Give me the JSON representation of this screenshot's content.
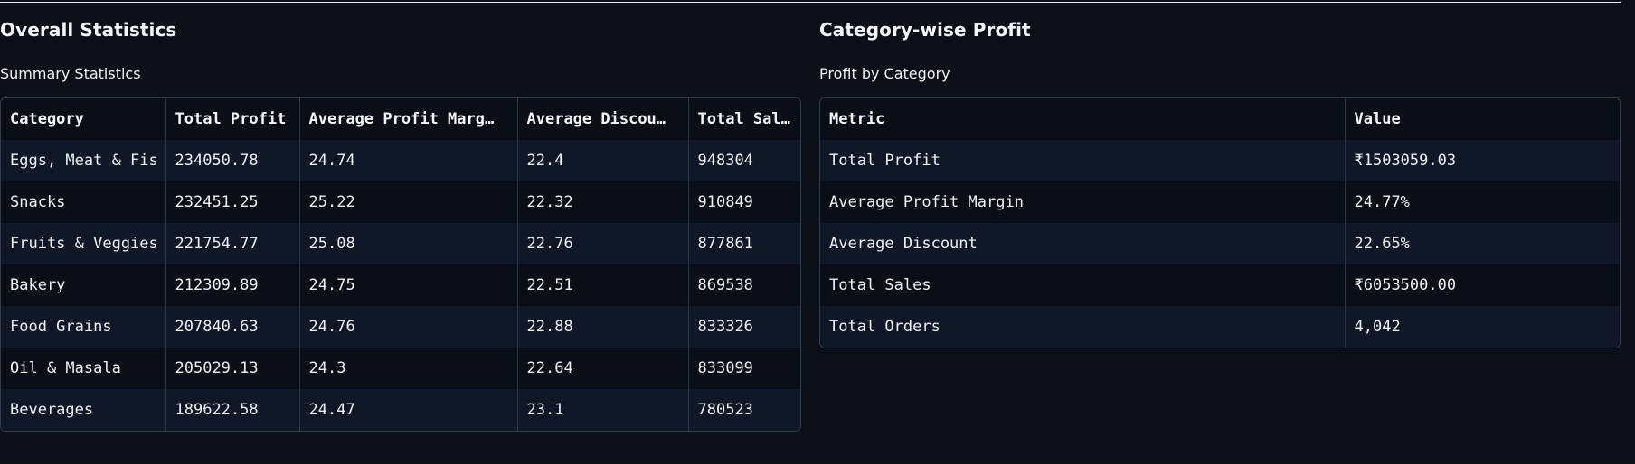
{
  "overall": {
    "title": "Overall Statistics",
    "subtitle": "Summary Statistics",
    "headers": [
      "Category",
      "Total Profit",
      "Average Profit Marg…",
      "Average Discou…",
      "Total Sal…"
    ],
    "rows": [
      [
        "Eggs, Meat & Fis",
        "234050.78",
        "24.74",
        "22.4",
        "948304"
      ],
      [
        "Snacks",
        "232451.25",
        "25.22",
        "22.32",
        "910849"
      ],
      [
        "Fruits & Veggies",
        "221754.77",
        "25.08",
        "22.76",
        "877861"
      ],
      [
        "Bakery",
        "212309.89",
        "24.75",
        "22.51",
        "869538"
      ],
      [
        "Food Grains",
        "207840.63",
        "24.76",
        "22.88",
        "833326"
      ],
      [
        "Oil & Masala",
        "205029.13",
        "24.3",
        "22.64",
        "833099"
      ],
      [
        "Beverages",
        "189622.58",
        "24.47",
        "23.1",
        "780523"
      ]
    ]
  },
  "category_profit": {
    "title": "Category-wise Profit",
    "subtitle": "Profit by Category",
    "headers": [
      "Metric",
      "Value"
    ],
    "rows": [
      [
        "Total Profit",
        "₹1503059.03"
      ],
      [
        "Average Profit Margin",
        "24.77%"
      ],
      [
        "Average Discount",
        "22.65%"
      ],
      [
        "Total Sales",
        "₹6053500.00"
      ],
      [
        "Total Orders",
        "4,042"
      ]
    ]
  },
  "colors": {
    "background": "#0b0f17",
    "row_alt": "#101827",
    "border": "#333b49",
    "text": "#eef1f5"
  }
}
